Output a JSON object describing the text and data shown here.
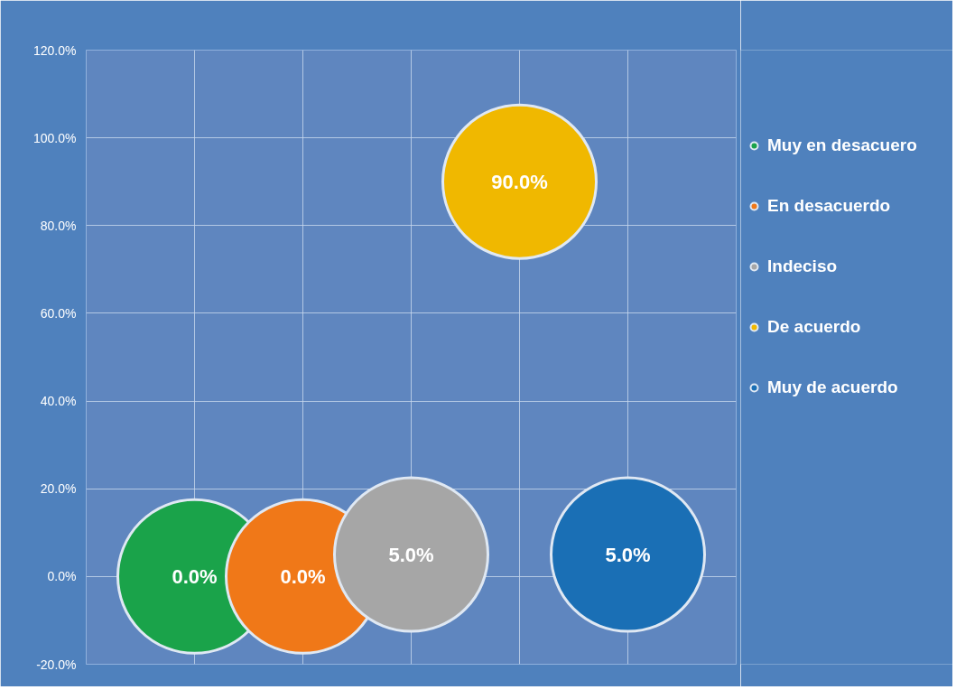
{
  "chart_data": {
    "type": "scatter",
    "categories": [
      null,
      null,
      null,
      null,
      null
    ],
    "ylim": [
      -20,
      120
    ],
    "yticks": [
      {
        "value": -20,
        "label": "-20.0%"
      },
      {
        "value": 0,
        "label": "0.0%"
      },
      {
        "value": 20,
        "label": "20.0%"
      },
      {
        "value": 40,
        "label": "40.0%"
      },
      {
        "value": 60,
        "label": "60.0%"
      },
      {
        "value": 80,
        "label": "80.0%"
      },
      {
        "value": 100,
        "label": "100.0%"
      },
      {
        "value": 120,
        "label": "120.0%"
      }
    ],
    "series": [
      {
        "name": "Muy en desacuero",
        "color": "#1aa34a",
        "values": [
          0,
          null,
          null,
          null,
          null
        ],
        "value_labels": [
          "0.0%",
          null,
          null,
          null,
          null
        ]
      },
      {
        "name": "En desacuerdo",
        "color": "#f07818",
        "values": [
          null,
          0,
          null,
          null,
          null
        ],
        "value_labels": [
          null,
          "0.0%",
          null,
          null,
          null
        ]
      },
      {
        "name": "Indeciso",
        "color": "#a6a6a6",
        "values": [
          null,
          null,
          5,
          null,
          null
        ],
        "value_labels": [
          null,
          null,
          "5.0%",
          null,
          null
        ]
      },
      {
        "name": "De acuerdo",
        "color": "#f0b800",
        "values": [
          null,
          null,
          null,
          90,
          null
        ],
        "value_labels": [
          null,
          null,
          null,
          "90.0%",
          null
        ]
      },
      {
        "name": "Muy de acuerdo",
        "color": "#1a6fb5",
        "values": [
          null,
          null,
          null,
          null,
          5
        ],
        "value_labels": [
          null,
          null,
          null,
          null,
          "5.0%"
        ]
      }
    ],
    "marker": "circle",
    "grid": true,
    "legend": "right"
  }
}
